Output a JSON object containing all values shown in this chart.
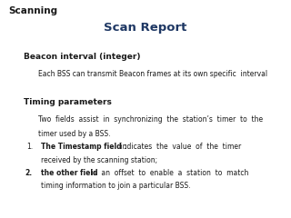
{
  "bg_color": "#ffffff",
  "scanning_text": "Scanning",
  "scanning_color": "#1a1a1a",
  "scanning_fontsize": 7.5,
  "scan_report_text": "Scan Report",
  "scan_report_color": "#1f3864",
  "scan_report_fontsize": 9.5,
  "beacon_heading": "Beacon interval (integer)",
  "beacon_heading_fontsize": 6.5,
  "beacon_body": "Each BSS can transmit Beacon frames at its own specific  interval",
  "beacon_body_fontsize": 5.5,
  "timing_heading": "Timing parameters",
  "timing_heading_fontsize": 6.5,
  "timing_intro_line1": "Two  fields  assist  in  synchronizing  the  station’s  timer  to  the",
  "timing_intro_line2": "timer used by a BSS.",
  "timing_intro_fontsize": 5.5,
  "item1_num": "1.",
  "item1_bold": "The Timestamp field :",
  "item1_normal": " indicates  the  value  of  the  timer",
  "item1_line2": "received by the scanning station;",
  "item1_fontsize": 5.5,
  "item2_num": "2.",
  "item2_bold": "the other field",
  "item2_normal": " is  an  offset  to  enable  a  station  to  match",
  "item2_line2": "timing information to join a particular BSS.",
  "item2_fontsize": 5.5,
  "text_color": "#1a1a1a"
}
